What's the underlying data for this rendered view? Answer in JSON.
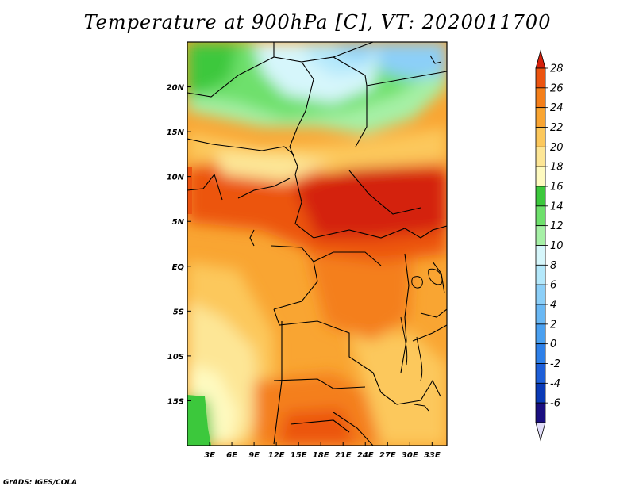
{
  "title": "Temperature at 900hPa [C], VT: 2020011700",
  "credit": "GrADS: IGES/COLA",
  "map": {
    "lon_range": [
      0,
      35
    ],
    "lat_range": [
      -20,
      25
    ],
    "lon_ticks": [
      {
        "value": 3,
        "label": "3E"
      },
      {
        "value": 6,
        "label": "6E"
      },
      {
        "value": 9,
        "label": "9E"
      },
      {
        "value": 12,
        "label": "12E"
      },
      {
        "value": 15,
        "label": "15E"
      },
      {
        "value": 18,
        "label": "18E"
      },
      {
        "value": 21,
        "label": "21E"
      },
      {
        "value": 24,
        "label": "24E"
      },
      {
        "value": 27,
        "label": "27E"
      },
      {
        "value": 30,
        "label": "30E"
      },
      {
        "value": 33,
        "label": "33E"
      }
    ],
    "lat_ticks": [
      {
        "value": 20,
        "label": "20N"
      },
      {
        "value": 15,
        "label": "15N"
      },
      {
        "value": 10,
        "label": "10N"
      },
      {
        "value": 5,
        "label": "5N"
      },
      {
        "value": 0,
        "label": "EQ"
      },
      {
        "value": -5,
        "label": "5S"
      },
      {
        "value": -10,
        "label": "10S"
      },
      {
        "value": -15,
        "label": "15S"
      }
    ]
  },
  "colorbar": {
    "levels": [
      "-6",
      "-4",
      "-2",
      "0",
      "2",
      "4",
      "6",
      "8",
      "10",
      "12",
      "14",
      "16",
      "18",
      "20",
      "22",
      "24",
      "26",
      "28"
    ],
    "colors": [
      "#1a0f80",
      "#0a3ab6",
      "#1e5fd8",
      "#2e80e8",
      "#4aa0f0",
      "#6ab8f4",
      "#8ccff8",
      "#b4e8fb",
      "#d6f6fb",
      "#a6f0a6",
      "#6ee06c",
      "#3cc83c",
      "#fefac0",
      "#fde696",
      "#fcc85c",
      "#f9a532",
      "#f47f1a",
      "#ec5410",
      "#d4200c"
    ],
    "low_color": "#e0dcf8"
  }
}
